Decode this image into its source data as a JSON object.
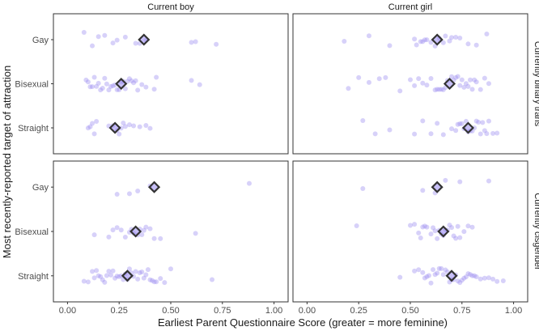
{
  "chart_data": {
    "type": "scatter",
    "xlabel": "Earliest Parent Questionnaire Score (greater = more feminine)",
    "ylabel": "Most recently-reported target of attraction",
    "categories": [
      "Gay",
      "Bisexual",
      "Straight"
    ],
    "columns": [
      "Current boy",
      "Current girl"
    ],
    "rows": [
      "Currently binary trans",
      "Currently cisgender"
    ],
    "xlim": [
      0,
      1
    ],
    "xticks": [
      "0.00",
      "0.25",
      "0.50",
      "0.75",
      "1.00"
    ],
    "colors": {
      "point": "#9a8cf0",
      "mean_marker": "#333333"
    },
    "panels": [
      {
        "row": "Currently binary trans",
        "column": "Current boy",
        "groups": [
          {
            "category": "Gay",
            "mean": 0.37,
            "points": [
              0.08,
              0.12,
              0.15,
              0.18,
              0.22,
              0.24,
              0.28,
              0.33,
              0.35,
              0.38,
              0.6,
              0.62,
              0.72
            ]
          },
          {
            "category": "Bisexual",
            "mean": 0.26,
            "points": [
              0.09,
              0.1,
              0.11,
              0.12,
              0.13,
              0.14,
              0.15,
              0.16,
              0.17,
              0.18,
              0.19,
              0.2,
              0.21,
              0.22,
              0.23,
              0.24,
              0.25,
              0.26,
              0.27,
              0.28,
              0.29,
              0.3,
              0.31,
              0.32,
              0.33,
              0.34,
              0.36,
              0.38,
              0.42,
              0.43,
              0.6,
              0.64
            ]
          },
          {
            "category": "Straight",
            "mean": 0.23,
            "points": [
              0.1,
              0.11,
              0.12,
              0.13,
              0.14,
              0.2,
              0.22,
              0.24,
              0.25,
              0.26,
              0.27,
              0.28,
              0.3,
              0.32,
              0.35,
              0.38,
              0.4
            ]
          }
        ]
      },
      {
        "row": "Currently binary trans",
        "column": "Current girl",
        "groups": [
          {
            "category": "Gay",
            "mean": 0.63,
            "points": [
              0.18,
              0.3,
              0.4,
              0.52,
              0.53,
              0.55,
              0.56,
              0.57,
              0.58,
              0.6,
              0.62,
              0.64,
              0.66,
              0.67,
              0.69,
              0.7,
              0.72,
              0.74,
              0.78,
              0.82,
              0.87
            ]
          },
          {
            "category": "Bisexual",
            "mean": 0.69,
            "points": [
              0.2,
              0.25,
              0.3,
              0.35,
              0.38,
              0.45,
              0.5,
              0.52,
              0.54,
              0.56,
              0.58,
              0.6,
              0.62,
              0.63,
              0.64,
              0.65,
              0.66,
              0.67,
              0.68,
              0.7,
              0.71,
              0.72,
              0.73,
              0.74,
              0.75,
              0.76,
              0.77,
              0.78,
              0.79,
              0.8,
              0.81,
              0.82,
              0.84,
              0.86,
              0.88
            ]
          },
          {
            "category": "Straight",
            "mean": 0.78,
            "points": [
              0.27,
              0.33,
              0.4,
              0.52,
              0.56,
              0.6,
              0.63,
              0.66,
              0.7,
              0.72,
              0.73,
              0.74,
              0.75,
              0.76,
              0.77,
              0.78,
              0.79,
              0.8,
              0.81,
              0.82,
              0.83,
              0.84,
              0.85,
              0.86,
              0.87,
              0.88,
              0.9,
              0.92
            ]
          }
        ]
      },
      {
        "row": "Currently cisgender",
        "column": "Current boy",
        "groups": [
          {
            "category": "Gay",
            "mean": 0.42,
            "points": [
              0.24,
              0.3,
              0.34,
              0.4,
              0.88
            ]
          },
          {
            "category": "Bisexual",
            "mean": 0.33,
            "points": [
              0.13,
              0.2,
              0.22,
              0.24,
              0.26,
              0.28,
              0.3,
              0.31,
              0.32,
              0.34,
              0.35,
              0.36,
              0.37,
              0.38,
              0.4,
              0.42,
              0.45,
              0.62
            ]
          },
          {
            "category": "Straight",
            "mean": 0.29,
            "points": [
              0.08,
              0.1,
              0.12,
              0.13,
              0.14,
              0.15,
              0.16,
              0.17,
              0.18,
              0.19,
              0.2,
              0.21,
              0.22,
              0.23,
              0.24,
              0.25,
              0.26,
              0.27,
              0.28,
              0.29,
              0.3,
              0.31,
              0.32,
              0.33,
              0.34,
              0.35,
              0.36,
              0.37,
              0.38,
              0.39,
              0.4,
              0.41,
              0.42,
              0.43,
              0.45,
              0.47,
              0.5,
              0.7
            ]
          }
        ]
      },
      {
        "row": "Currently cisgender",
        "column": "Current girl",
        "groups": [
          {
            "category": "Gay",
            "mean": 0.63,
            "points": [
              0.27,
              0.56,
              0.62,
              0.67,
              0.74,
              0.88
            ]
          },
          {
            "category": "Bisexual",
            "mean": 0.66,
            "points": [
              0.24,
              0.5,
              0.52,
              0.54,
              0.55,
              0.56,
              0.57,
              0.58,
              0.6,
              0.61,
              0.62,
              0.63,
              0.64,
              0.65,
              0.66,
              0.67,
              0.68,
              0.69,
              0.7,
              0.71,
              0.72,
              0.73,
              0.74,
              0.76,
              0.78,
              0.8
            ]
          },
          {
            "category": "Straight",
            "mean": 0.7,
            "points": [
              0.45,
              0.52,
              0.54,
              0.56,
              0.57,
              0.58,
              0.59,
              0.6,
              0.61,
              0.62,
              0.63,
              0.64,
              0.65,
              0.66,
              0.67,
              0.68,
              0.69,
              0.7,
              0.71,
              0.72,
              0.73,
              0.74,
              0.75,
              0.76,
              0.77,
              0.78,
              0.79,
              0.8,
              0.81,
              0.82,
              0.84,
              0.86,
              0.88,
              0.9,
              0.92,
              0.95
            ]
          }
        ]
      }
    ]
  }
}
